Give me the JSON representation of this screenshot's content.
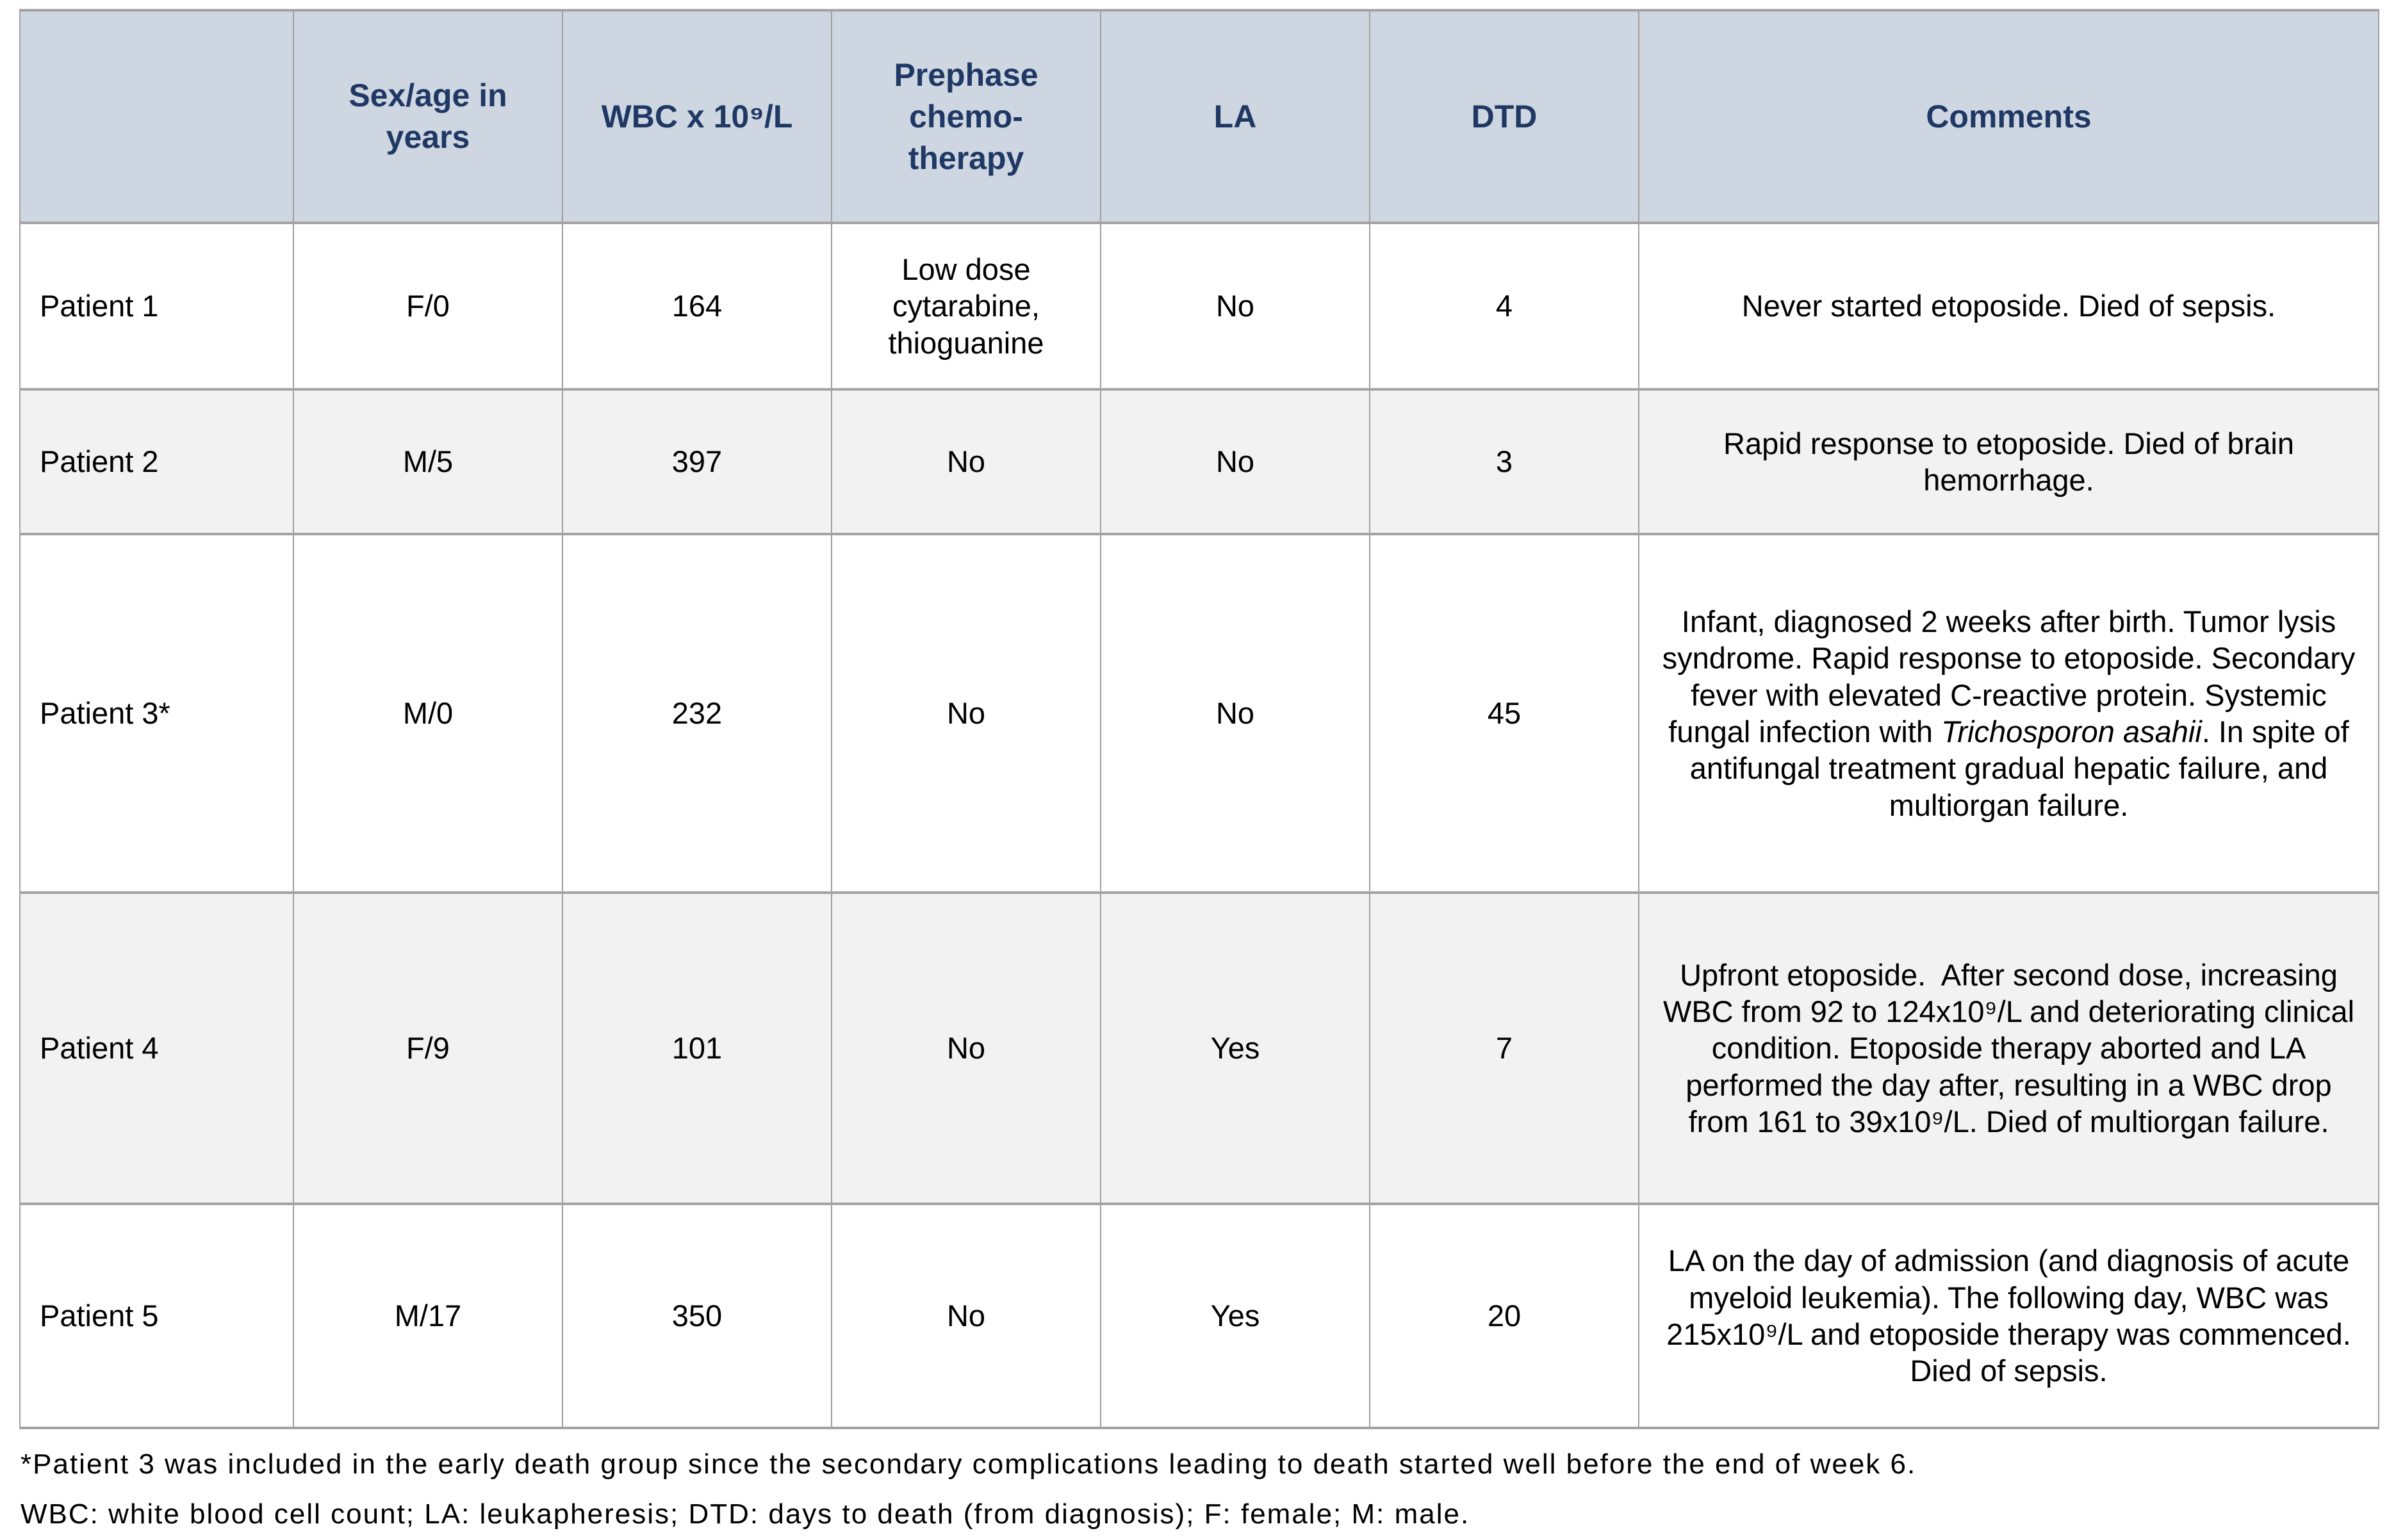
{
  "colors": {
    "header_bg": "#ced7e1",
    "header_text": "#1f3864",
    "row_alt_bg": "#f2f2f2",
    "border": "#9f9f9f",
    "body_text": "#000000"
  },
  "table": {
    "columns": [
      {
        "label": ""
      },
      {
        "label": "Sex/age in\nyears"
      },
      {
        "label": "WBC x 10⁹/L"
      },
      {
        "label": "Prephase\nchemo-\ntherapy"
      },
      {
        "label": "LA"
      },
      {
        "label": "DTD"
      },
      {
        "label": "Comments"
      }
    ],
    "rows": [
      {
        "patient": "Patient 1",
        "sex_age": "F/0",
        "wbc": "164",
        "prephase": "Low dose cytarabine, thioguanine",
        "la": "No",
        "dtd": "4",
        "comments": [
          {
            "text": "Never started etoposide. Died of sepsis."
          }
        ]
      },
      {
        "patient": "Patient 2",
        "sex_age": "M/5",
        "wbc": "397",
        "prephase": "No",
        "la": "No",
        "dtd": "3",
        "comments": [
          {
            "text": "Rapid response to etoposide. Died of brain hemorrhage."
          }
        ]
      },
      {
        "patient": "Patient 3*",
        "sex_age": "M/0",
        "wbc": "232",
        "prephase": "No",
        "la": "No",
        "dtd": "45",
        "comments": [
          {
            "text": "Infant, diagnosed 2 weeks after birth. Tumor lysis syndrome. Rapid response to etoposide. Secondary fever with elevated C-reactive protein. Systemic fungal infection with "
          },
          {
            "text": "Trichosporon asahii",
            "italic": true
          },
          {
            "text": ". In spite of antifungal treatment gradual hepatic failure, and multiorgan failure."
          }
        ]
      },
      {
        "patient": "Patient 4",
        "sex_age": "F/9",
        "wbc": "101",
        "prephase": "No",
        "la": "Yes",
        "dtd": "7",
        "comments": [
          {
            "text": "Upfront etoposide.  After second dose, increasing WBC from 92 to 124x10⁹/L and deteriorating clinical condition. Etoposide therapy aborted and LA performed the day after, resulting in a WBC drop from 161 to 39x10⁹/L. Died of multiorgan failure."
          }
        ]
      },
      {
        "patient": "Patient 5",
        "sex_age": "M/17",
        "wbc": "350",
        "prephase": "No",
        "la": "Yes",
        "dtd": "20",
        "comments": [
          {
            "text": "LA on the day of admission (and diagnosis of acute myeloid leukemia). The following day, WBC was 215x10⁹/L and etoposide therapy was commenced. Died of sepsis."
          }
        ]
      }
    ]
  },
  "footnotes": [
    "*Patient 3 was included in the early death group since the secondary complications leading to death started well before the end of week 6.",
    "WBC: white blood cell count; LA: leukapheresis; DTD: days to death (from diagnosis); F: female; M: male."
  ]
}
